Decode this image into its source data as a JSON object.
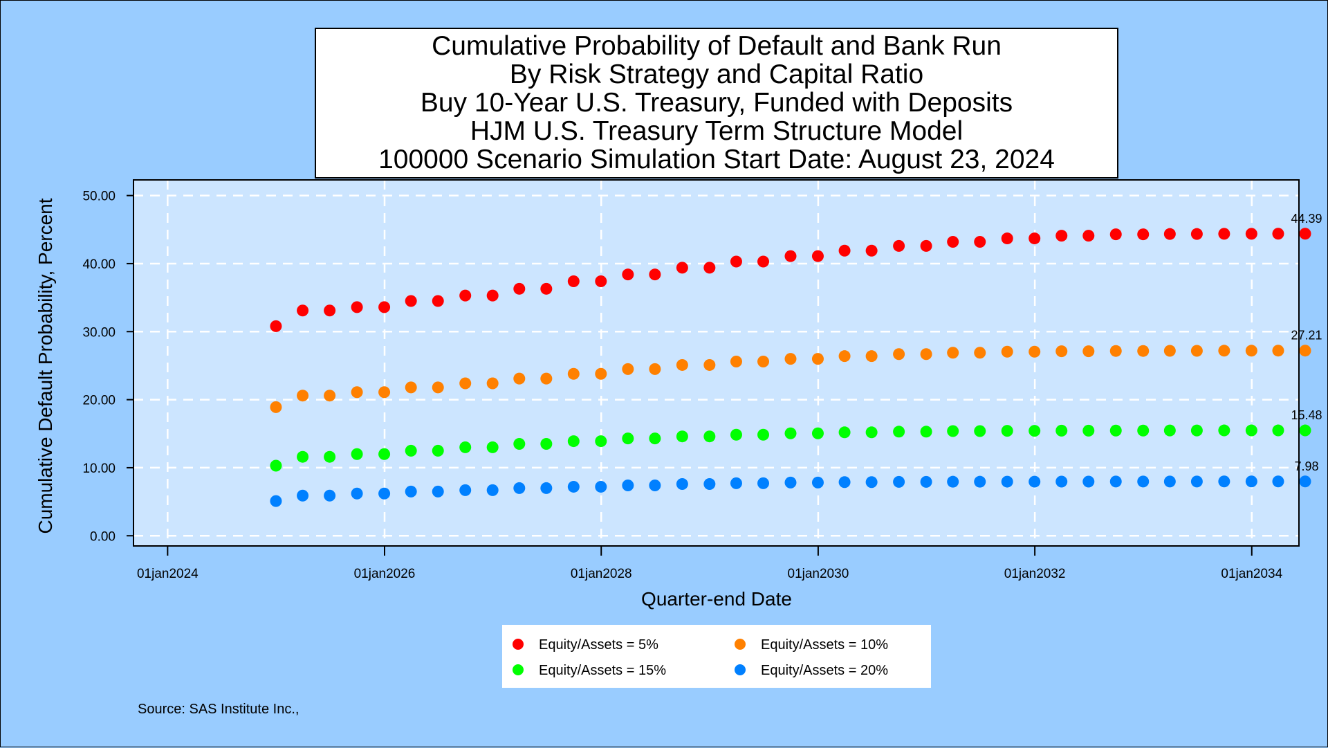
{
  "chart_data": {
    "type": "scatter",
    "title_lines": [
      "Cumulative Probability of Default and Bank Run",
      "By Risk Strategy and Capital Ratio",
      "Buy 10-Year U.S. Treasury, Funded with Deposits",
      "HJM U.S. Treasury Term Structure Model",
      "100000 Scenario Simulation Start Date: August 23, 2024"
    ],
    "xlabel": "Quarter-end Date",
    "ylabel": "Cumulative Default Probability, Percent",
    "x_ticks": [
      "01jan2024",
      "01jan2026",
      "01jan2028",
      "01jan2030",
      "01jan2032",
      "01jan2034"
    ],
    "x_tick_dates": [
      "2024-01-01",
      "2026-01-01",
      "2028-01-01",
      "2030-01-01",
      "2032-01-01",
      "2034-01-01"
    ],
    "xlim": [
      "2023-09-08",
      "2034-06-09"
    ],
    "y_ticks": [
      "0.00",
      "10.00",
      "20.00",
      "30.00",
      "40.00",
      "50.00"
    ],
    "y_tick_values": [
      0,
      10,
      20,
      30,
      40,
      50
    ],
    "ylim": [
      -1.5,
      52.3
    ],
    "grid": true,
    "legend_position": "bottom",
    "x": [
      "2024-12-31",
      "2025-03-31",
      "2025-06-30",
      "2025-09-30",
      "2025-12-31",
      "2026-03-31",
      "2026-06-30",
      "2026-09-30",
      "2026-12-31",
      "2027-03-31",
      "2027-06-30",
      "2027-09-30",
      "2027-12-31",
      "2028-03-31",
      "2028-06-30",
      "2028-09-30",
      "2028-12-31",
      "2029-03-31",
      "2029-06-30",
      "2029-09-30",
      "2029-12-31",
      "2030-03-31",
      "2030-06-30",
      "2030-09-30",
      "2030-12-31",
      "2031-03-31",
      "2031-06-30",
      "2031-09-30",
      "2031-12-31",
      "2032-03-31",
      "2032-06-30",
      "2032-09-30",
      "2032-12-31",
      "2033-03-31",
      "2033-06-30",
      "2033-09-30",
      "2033-12-31",
      "2034-03-31",
      "2034-06-30"
    ],
    "series": [
      {
        "name": "Equity/Assets = 5%",
        "color": "#ff0000",
        "end_label": "44.39",
        "values": [
          30.8,
          33.1,
          33.1,
          33.6,
          33.6,
          34.5,
          34.5,
          35.3,
          35.3,
          36.3,
          36.3,
          37.4,
          37.4,
          38.4,
          38.4,
          39.4,
          39.4,
          40.3,
          40.3,
          41.1,
          41.1,
          41.9,
          41.9,
          42.6,
          42.6,
          43.2,
          43.2,
          43.7,
          43.7,
          44.1,
          44.1,
          44.3,
          44.3,
          44.35,
          44.35,
          44.38,
          44.38,
          44.39,
          44.39
        ]
      },
      {
        "name": "Equity/Assets = 10%",
        "color": "#ff8000",
        "end_label": "27.21",
        "values": [
          18.9,
          20.6,
          20.6,
          21.1,
          21.1,
          21.8,
          21.8,
          22.4,
          22.4,
          23.1,
          23.1,
          23.8,
          23.8,
          24.5,
          24.5,
          25.1,
          25.1,
          25.6,
          25.6,
          26.0,
          26.0,
          26.4,
          26.4,
          26.7,
          26.7,
          26.9,
          26.9,
          27.05,
          27.05,
          27.12,
          27.12,
          27.16,
          27.16,
          27.18,
          27.18,
          27.2,
          27.2,
          27.21,
          27.21
        ]
      },
      {
        "name": "Equity/Assets = 15%",
        "color": "#00ff00",
        "end_label": "15.48",
        "values": [
          10.3,
          11.6,
          11.6,
          12.0,
          12.0,
          12.5,
          12.5,
          13.0,
          13.0,
          13.5,
          13.5,
          13.9,
          13.9,
          14.3,
          14.3,
          14.6,
          14.6,
          14.85,
          14.85,
          15.05,
          15.05,
          15.2,
          15.2,
          15.3,
          15.3,
          15.38,
          15.38,
          15.42,
          15.42,
          15.45,
          15.45,
          15.46,
          15.46,
          15.47,
          15.47,
          15.48,
          15.48,
          15.48,
          15.48
        ]
      },
      {
        "name": "Equity/Assets = 20%",
        "color": "#0080ff",
        "end_label": "7.98",
        "values": [
          5.1,
          5.9,
          5.9,
          6.2,
          6.2,
          6.5,
          6.5,
          6.7,
          6.7,
          7.0,
          7.0,
          7.2,
          7.2,
          7.4,
          7.4,
          7.6,
          7.6,
          7.72,
          7.72,
          7.82,
          7.82,
          7.88,
          7.88,
          7.92,
          7.92,
          7.94,
          7.94,
          7.95,
          7.95,
          7.96,
          7.96,
          7.97,
          7.97,
          7.97,
          7.97,
          7.98,
          7.98,
          7.98,
          7.98
        ]
      }
    ]
  },
  "source_note": "Source: SAS Institute Inc.,",
  "colors": {
    "page_background": "#99ccff",
    "plot_background": "#cce5ff",
    "gridline": "#ffffff"
  }
}
